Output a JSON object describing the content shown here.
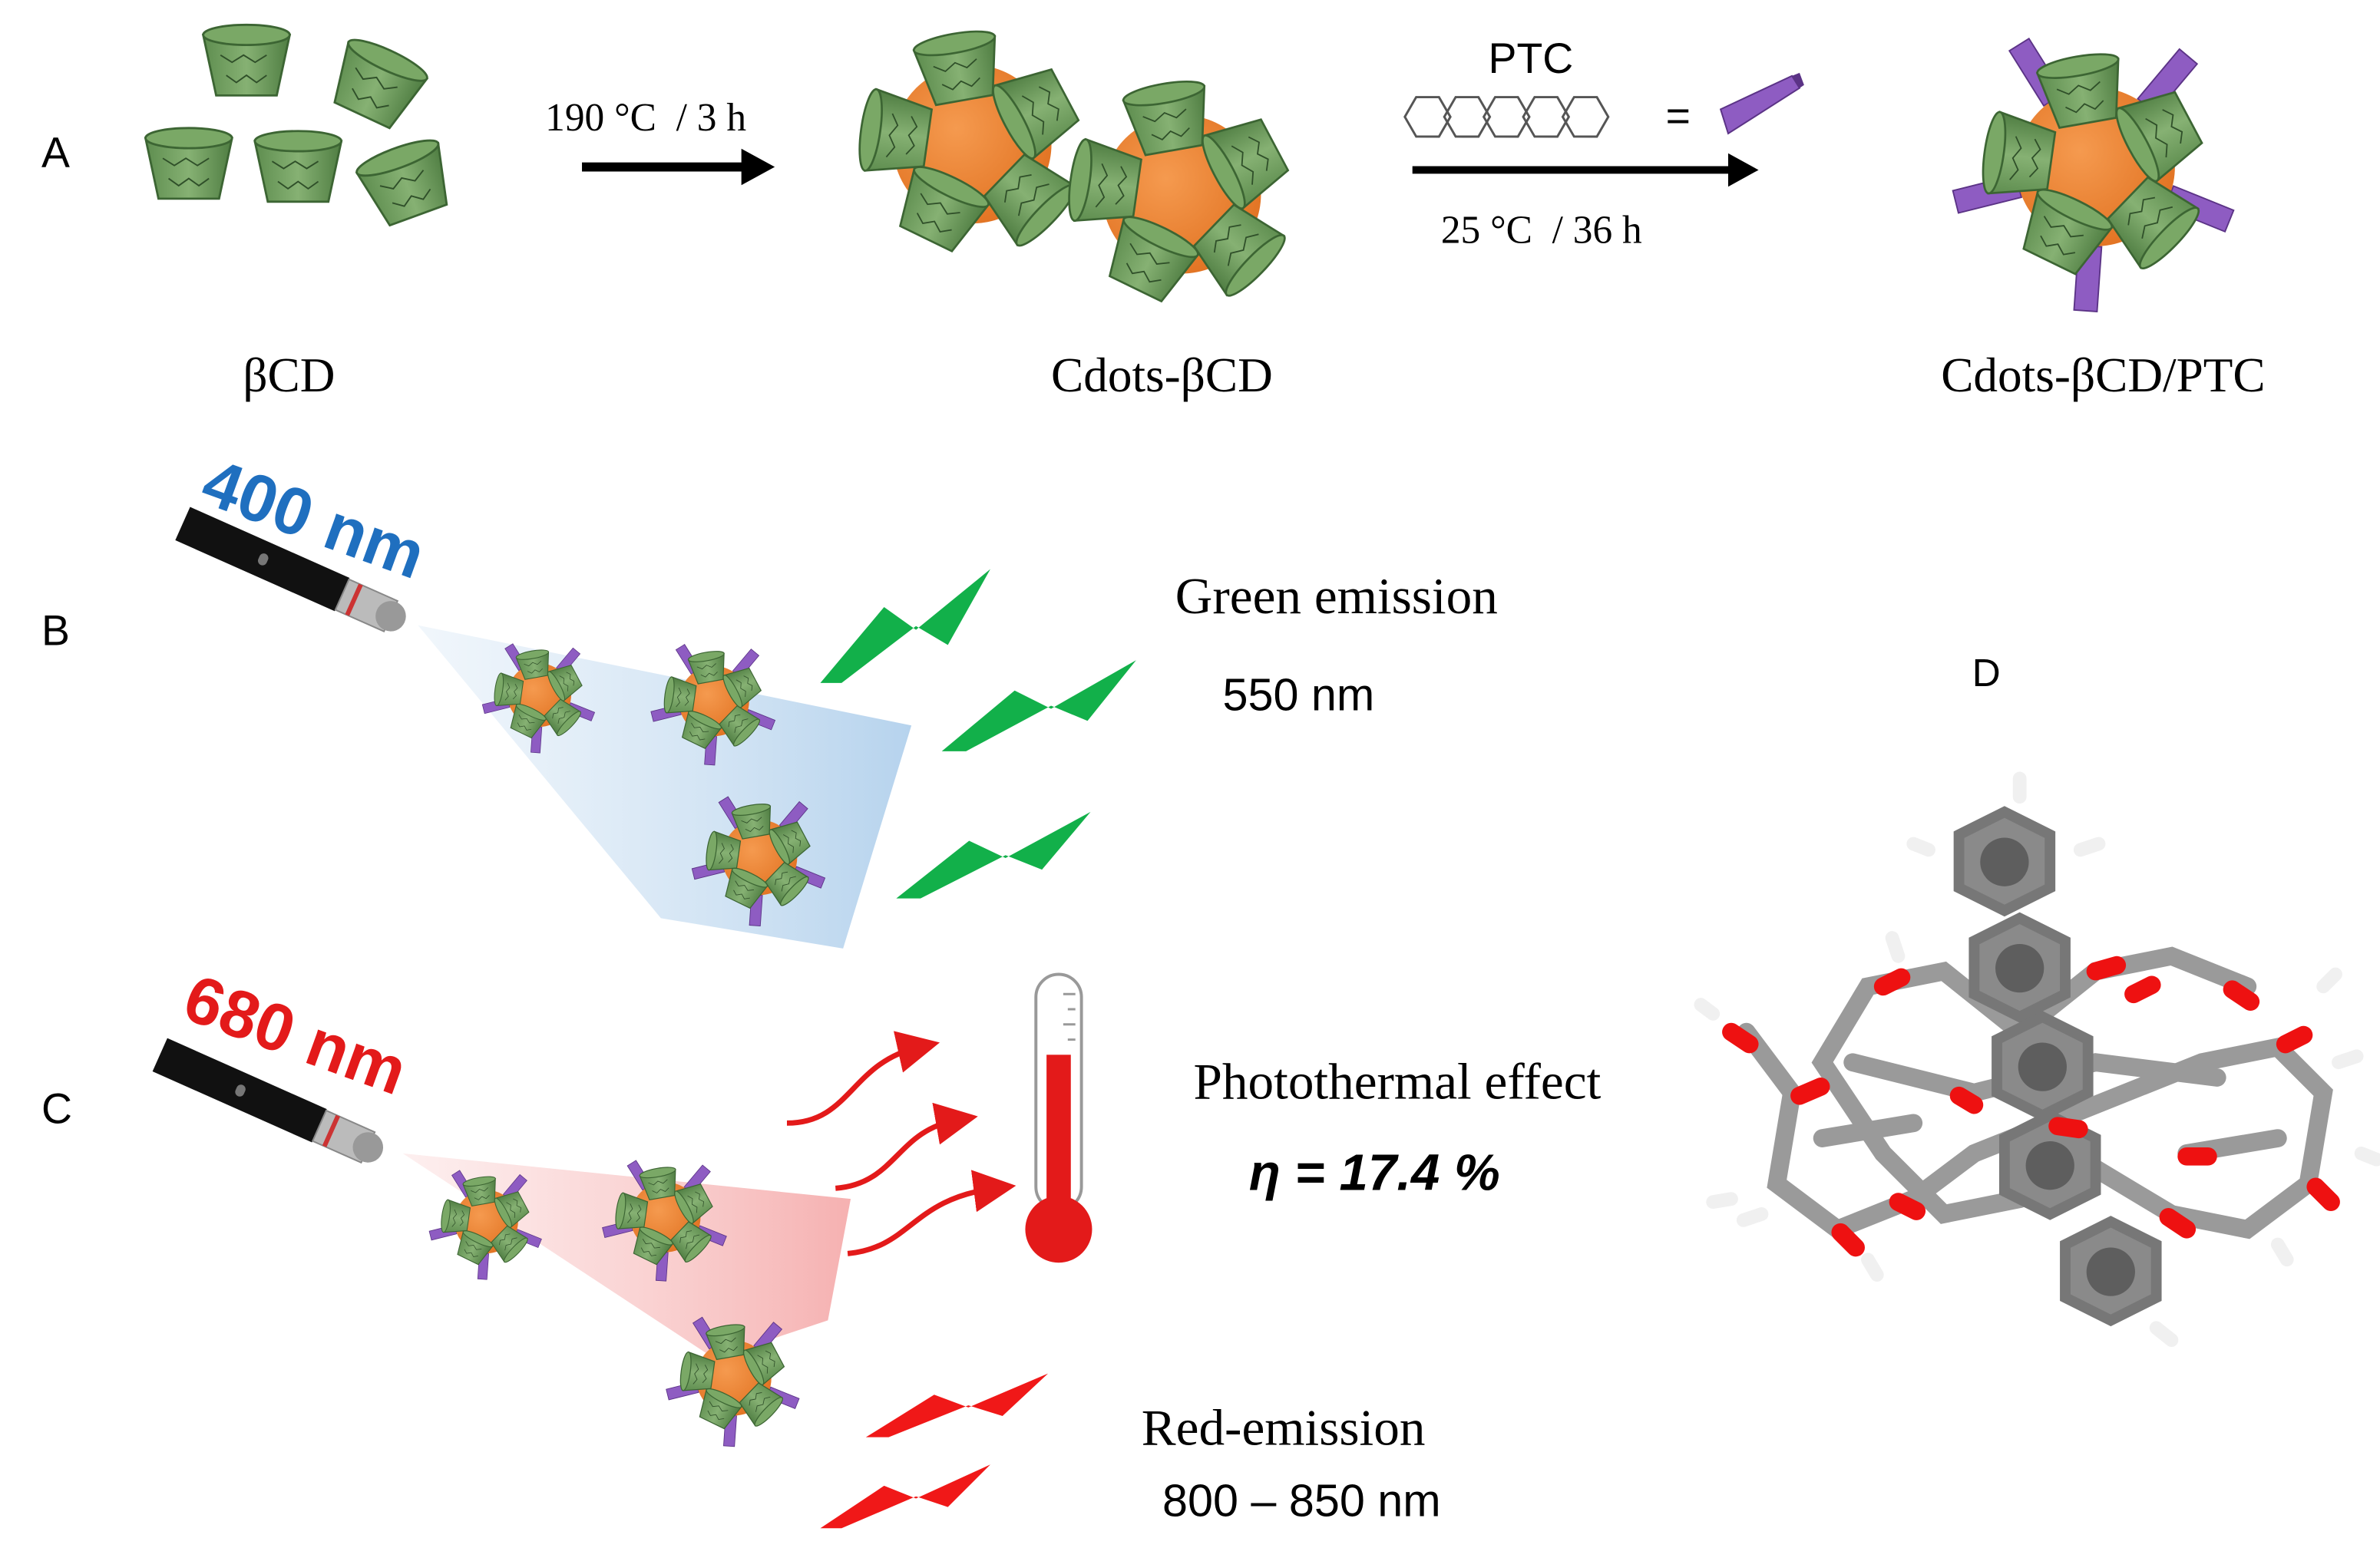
{
  "panel_a": {
    "label": "A",
    "step1": "190 °C  / 3 h",
    "reagent": "PTC",
    "equals": "=",
    "step2": "25 °C  / 36 h",
    "products": [
      "βCD",
      "Cdots-βCD",
      "Cdots-βCD/PTC"
    ]
  },
  "panel_b": {
    "label": "B",
    "laser": "400 nm",
    "title": "Green emission",
    "wavelength": "550 nm"
  },
  "panel_c": {
    "label": "C",
    "laser": "680 nm",
    "effect": "Photothermal effect",
    "efficiency": "η = 17.4 %",
    "emission": "Red-emission",
    "wavelength": "800 – 850 nm"
  },
  "panel_d": {
    "label": "D"
  }
}
